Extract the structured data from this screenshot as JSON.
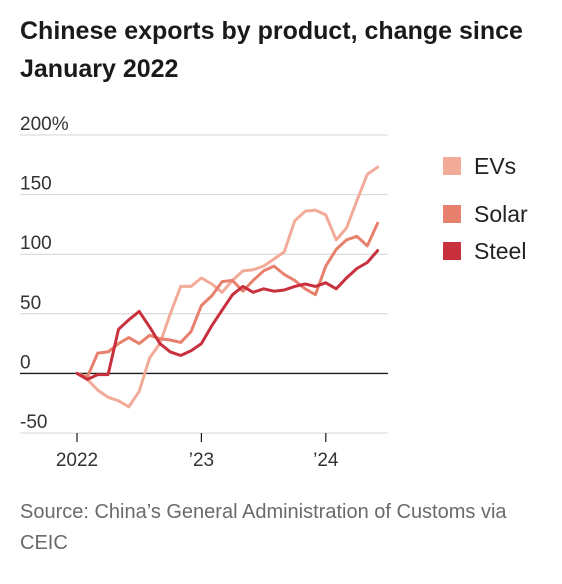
{
  "header": {
    "title": "Chinese exports by product, change since January 2022"
  },
  "footer": {
    "source": "Source: China’s General Administration of Customs via CEIC"
  },
  "chart_data": {
    "type": "line",
    "title": "Chinese exports by product, change since January 2022",
    "xlabel": "",
    "ylabel": "",
    "ylim": [
      -50,
      200
    ],
    "xlim": [
      "2022-01",
      "2024-07"
    ],
    "y_ticks": [
      200,
      150,
      100,
      50,
      0,
      -50
    ],
    "y_tick_labels": [
      "200%",
      "150",
      "100",
      "50",
      "0",
      "-50"
    ],
    "x_ticks": [
      "2022-01",
      "2023-01",
      "2024-01"
    ],
    "x_tick_labels": [
      "2022",
      "’23",
      "’24"
    ],
    "grid": true,
    "legend_position": "right",
    "x": [
      "2022-01",
      "2022-02",
      "2022-03",
      "2022-04",
      "2022-05",
      "2022-06",
      "2022-07",
      "2022-08",
      "2022-09",
      "2022-10",
      "2022-11",
      "2022-12",
      "2023-01",
      "2023-02",
      "2023-03",
      "2023-04",
      "2023-05",
      "2023-06",
      "2023-07",
      "2023-08",
      "2023-09",
      "2023-10",
      "2023-11",
      "2023-12",
      "2024-01",
      "2024-02",
      "2024-03",
      "2024-04",
      "2024-05",
      "2024-06",
      "2024-07"
    ],
    "series": [
      {
        "name": "EVs",
        "color": "#f2ab98",
        "values": [
          0,
          -5,
          -14,
          -20,
          -23,
          -28,
          -15,
          13,
          25,
          50,
          73,
          73,
          80,
          75,
          68,
          78,
          86,
          87,
          90,
          96,
          102,
          128,
          136,
          137,
          133,
          112,
          122,
          145,
          167,
          173,
          null
        ]
      },
      {
        "name": "Solar",
        "color": "#e8806e",
        "values": [
          0,
          -3,
          17,
          18,
          25,
          30,
          25,
          32,
          29,
          28,
          26,
          35,
          57,
          65,
          77,
          78,
          69,
          78,
          86,
          90,
          83,
          78,
          71,
          66,
          90,
          104,
          112,
          115,
          107,
          126,
          null
        ]
      },
      {
        "name": "Steel",
        "color": "#c8303d",
        "values": [
          0,
          -5,
          -1,
          -1,
          37,
          45,
          52,
          39,
          25,
          18,
          15,
          19,
          25,
          40,
          53,
          66,
          73,
          68,
          71,
          69,
          70,
          73,
          75,
          73,
          76,
          71,
          80,
          88,
          93,
          103,
          null
        ]
      }
    ]
  }
}
